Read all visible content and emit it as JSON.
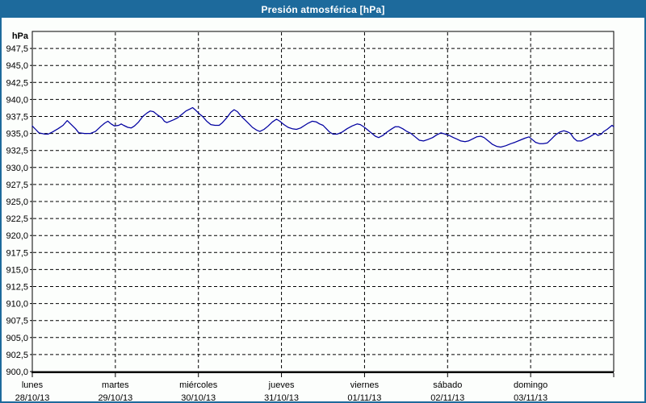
{
  "window": {
    "title": "Presión atmosférica [hPa]"
  },
  "colors": {
    "titlebar_bg": "#1d6a9c",
    "window_border": "#1d6a9c",
    "title_text": "#ffffff",
    "page_bg": "#fcfefc",
    "plot_bg": "#fcfefc",
    "grid": "#000000",
    "axis": "#000000",
    "text": "#000000",
    "line": "#0000a0"
  },
  "chart_data": {
    "type": "line",
    "title": "Presión atmosférica [hPa]",
    "xlabel": "",
    "ylabel": "hPa",
    "ylim": [
      900,
      950
    ],
    "ytick_step": 2.5,
    "ytick_labels": [
      "900,0",
      "902,5",
      "905,0",
      "907,5",
      "910,0",
      "912,5",
      "915,0",
      "917,5",
      "920,0",
      "922,5",
      "925,0",
      "927,5",
      "930,0",
      "932,5",
      "935,0",
      "937,5",
      "940,0",
      "942,5",
      "945,0",
      "947,5"
    ],
    "grid": "dashed",
    "legend": "none",
    "x_axis": {
      "unit": "days",
      "span_days": 7,
      "days": [
        {
          "name": "lunes",
          "date": "28/10/13"
        },
        {
          "name": "martes",
          "date": "29/10/13"
        },
        {
          "name": "miércoles",
          "date": "30/10/13"
        },
        {
          "name": "jueves",
          "date": "31/10/13"
        },
        {
          "name": "viernes",
          "date": "01/11/13"
        },
        {
          "name": "sábado",
          "date": "02/11/13"
        },
        {
          "name": "domingo",
          "date": "03/11/13"
        }
      ]
    },
    "series": [
      {
        "name": "Presión atmosférica [hPa]",
        "color": "#0000a0",
        "x_unit": "days from lunes 28/10/13 00:00",
        "points": [
          [
            0.0,
            936.1
          ],
          [
            0.04,
            935.6
          ],
          [
            0.08,
            935.1
          ],
          [
            0.15,
            934.9
          ],
          [
            0.19,
            934.9
          ],
          [
            0.24,
            935.2
          ],
          [
            0.31,
            935.7
          ],
          [
            0.37,
            936.2
          ],
          [
            0.42,
            936.9
          ],
          [
            0.47,
            936.3
          ],
          [
            0.52,
            935.7
          ],
          [
            0.56,
            935.1
          ],
          [
            0.63,
            935.0
          ],
          [
            0.7,
            935.0
          ],
          [
            0.76,
            935.3
          ],
          [
            0.83,
            936.1
          ],
          [
            0.87,
            936.5
          ],
          [
            0.91,
            936.8
          ],
          [
            0.95,
            936.4
          ],
          [
            0.99,
            936.1
          ],
          [
            1.04,
            936.2
          ],
          [
            1.07,
            936.4
          ],
          [
            1.1,
            936.2
          ],
          [
            1.15,
            935.9
          ],
          [
            1.19,
            935.8
          ],
          [
            1.23,
            936.1
          ],
          [
            1.28,
            936.7
          ],
          [
            1.33,
            937.5
          ],
          [
            1.38,
            938.0
          ],
          [
            1.42,
            938.3
          ],
          [
            1.46,
            938.2
          ],
          [
            1.51,
            937.7
          ],
          [
            1.56,
            937.3
          ],
          [
            1.59,
            936.8
          ],
          [
            1.62,
            936.6
          ],
          [
            1.66,
            936.8
          ],
          [
            1.7,
            937.0
          ],
          [
            1.75,
            937.3
          ],
          [
            1.8,
            937.8
          ],
          [
            1.85,
            938.3
          ],
          [
            1.9,
            938.6
          ],
          [
            1.93,
            938.8
          ],
          [
            1.96,
            938.5
          ],
          [
            2.01,
            937.9
          ],
          [
            2.05,
            937.5
          ],
          [
            2.1,
            936.8
          ],
          [
            2.15,
            936.3
          ],
          [
            2.2,
            936.2
          ],
          [
            2.25,
            936.2
          ],
          [
            2.29,
            936.6
          ],
          [
            2.34,
            937.3
          ],
          [
            2.39,
            938.1
          ],
          [
            2.43,
            938.5
          ],
          [
            2.47,
            938.2
          ],
          [
            2.51,
            937.6
          ],
          [
            2.56,
            937.0
          ],
          [
            2.61,
            936.4
          ],
          [
            2.65,
            935.9
          ],
          [
            2.7,
            935.5
          ],
          [
            2.74,
            935.3
          ],
          [
            2.79,
            935.6
          ],
          [
            2.84,
            936.1
          ],
          [
            2.89,
            936.7
          ],
          [
            2.94,
            937.1
          ],
          [
            2.98,
            936.8
          ],
          [
            3.03,
            936.3
          ],
          [
            3.08,
            935.9
          ],
          [
            3.13,
            935.7
          ],
          [
            3.18,
            935.6
          ],
          [
            3.23,
            935.8
          ],
          [
            3.28,
            936.2
          ],
          [
            3.32,
            936.5
          ],
          [
            3.37,
            936.8
          ],
          [
            3.42,
            936.7
          ],
          [
            3.46,
            936.4
          ],
          [
            3.5,
            936.2
          ],
          [
            3.54,
            935.7
          ],
          [
            3.58,
            935.2
          ],
          [
            3.62,
            934.9
          ],
          [
            3.67,
            934.9
          ],
          [
            3.73,
            935.2
          ],
          [
            3.79,
            935.7
          ],
          [
            3.85,
            936.1
          ],
          [
            3.91,
            936.4
          ],
          [
            3.95,
            936.3
          ],
          [
            4.0,
            935.9
          ],
          [
            4.04,
            935.5
          ],
          [
            4.09,
            935.0
          ],
          [
            4.13,
            934.6
          ],
          [
            4.17,
            934.4
          ],
          [
            4.22,
            934.7
          ],
          [
            4.27,
            935.2
          ],
          [
            4.33,
            935.7
          ],
          [
            4.37,
            936.0
          ],
          [
            4.41,
            936.0
          ],
          [
            4.46,
            935.7
          ],
          [
            4.51,
            935.3
          ],
          [
            4.56,
            935.0
          ],
          [
            4.61,
            934.5
          ],
          [
            4.66,
            934.0
          ],
          [
            4.71,
            933.9
          ],
          [
            4.76,
            934.1
          ],
          [
            4.82,
            934.4
          ],
          [
            4.87,
            934.8
          ],
          [
            4.92,
            935.1
          ],
          [
            4.97,
            934.9
          ],
          [
            5.02,
            934.7
          ],
          [
            5.07,
            934.4
          ],
          [
            5.11,
            934.2
          ],
          [
            5.16,
            933.9
          ],
          [
            5.21,
            933.8
          ],
          [
            5.25,
            933.9
          ],
          [
            5.3,
            934.2
          ],
          [
            5.35,
            934.5
          ],
          [
            5.4,
            934.6
          ],
          [
            5.44,
            934.4
          ],
          [
            5.49,
            933.9
          ],
          [
            5.54,
            933.4
          ],
          [
            5.59,
            933.1
          ],
          [
            5.64,
            933.0
          ],
          [
            5.7,
            933.2
          ],
          [
            5.76,
            933.5
          ],
          [
            5.81,
            933.7
          ],
          [
            5.87,
            934.0
          ],
          [
            5.93,
            934.3
          ],
          [
            5.98,
            934.5
          ],
          [
            6.02,
            934.1
          ],
          [
            6.06,
            933.7
          ],
          [
            6.11,
            933.5
          ],
          [
            6.15,
            933.5
          ],
          [
            6.2,
            933.6
          ],
          [
            6.25,
            934.2
          ],
          [
            6.3,
            934.8
          ],
          [
            6.35,
            935.2
          ],
          [
            6.4,
            935.4
          ],
          [
            6.45,
            935.2
          ],
          [
            6.48,
            935.0
          ],
          [
            6.52,
            934.3
          ],
          [
            6.56,
            933.9
          ],
          [
            6.61,
            933.9
          ],
          [
            6.66,
            934.2
          ],
          [
            6.71,
            934.5
          ],
          [
            6.75,
            934.8
          ],
          [
            6.78,
            935.0
          ],
          [
            6.81,
            934.7
          ],
          [
            6.85,
            934.9
          ],
          [
            6.88,
            935.3
          ],
          [
            6.92,
            935.6
          ],
          [
            6.95,
            935.9
          ],
          [
            6.98,
            936.2
          ],
          [
            7.0,
            936.0
          ]
        ]
      }
    ]
  }
}
